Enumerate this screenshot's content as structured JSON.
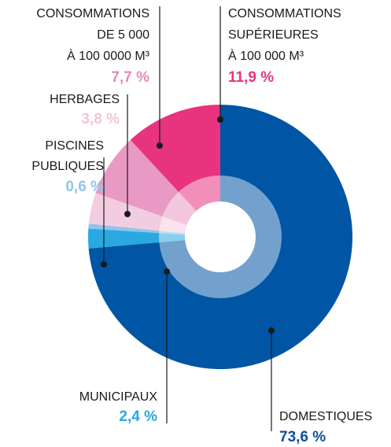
{
  "chart_data": {
    "type": "donut",
    "categories": [
      [
        "DOMESTIQUES"
      ],
      [
        "MUNICIPAUX"
      ],
      [
        "PISCINES",
        "PUBLIQUES"
      ],
      [
        "HERBAGES"
      ],
      [
        "CONSOMMATIONS",
        "DE 5 000",
        "À 100 0000 M³"
      ],
      [
        "CONSOMMATIONS",
        "SUPÉRIEURES",
        "À 100 000 M³"
      ]
    ],
    "values": [
      73.6,
      2.4,
      0.6,
      3.8,
      7.7,
      11.9
    ],
    "value_labels": [
      "73,6 %",
      "2,4 %",
      "0,6 %",
      "3,8 %",
      "7,7 %",
      "11,9 %"
    ],
    "colors": [
      "#0055a4",
      "#29a9e0",
      "#8fc3ea",
      "#f2cde0",
      "#e89ac4",
      "#e8337f"
    ],
    "label_colors": [
      "#0d4e9a",
      "#29a9e0",
      "#90c4ea",
      "#f3c4d9",
      "#e58ab9",
      "#e8337f"
    ]
  }
}
